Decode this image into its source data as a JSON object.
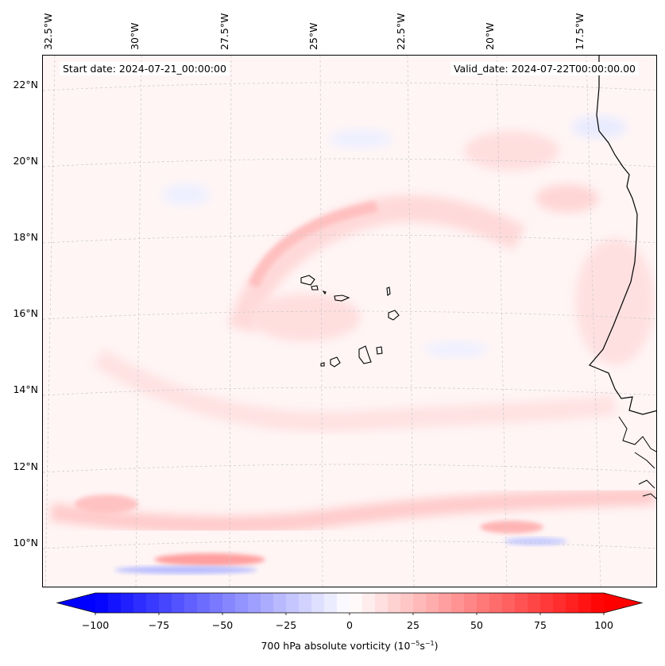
{
  "map": {
    "start_date": "Start date: 2024-07-21_00:00:00",
    "valid_date": "Valid_date: 2024-07-22T00:00:00.00",
    "longitude_labels": [
      "32.5°W",
      "30°W",
      "27.5°W",
      "25°W",
      "22.5°W",
      "20°W",
      "17.5°W"
    ],
    "latitude_labels": [
      "22°N",
      "20°N",
      "18°N",
      "16°N",
      "14°N",
      "12°N",
      "10°N"
    ],
    "field": "700 hPa absolute vorticity",
    "land_labels": []
  },
  "colorbar": {
    "ticks": [
      "−100",
      "−75",
      "−50",
      "−25",
      "0",
      "25",
      "50",
      "75",
      "100"
    ],
    "label_text": "700 hPa absolute vorticity (10",
    "label_exp1": "−5",
    "label_mid": "s",
    "label_exp2": "−1",
    "label_end": ")",
    "min": -100,
    "max": 100,
    "colors": {
      "negative": "#0000ff",
      "zero": "#ffffff",
      "positive": "#ff0000"
    }
  }
}
